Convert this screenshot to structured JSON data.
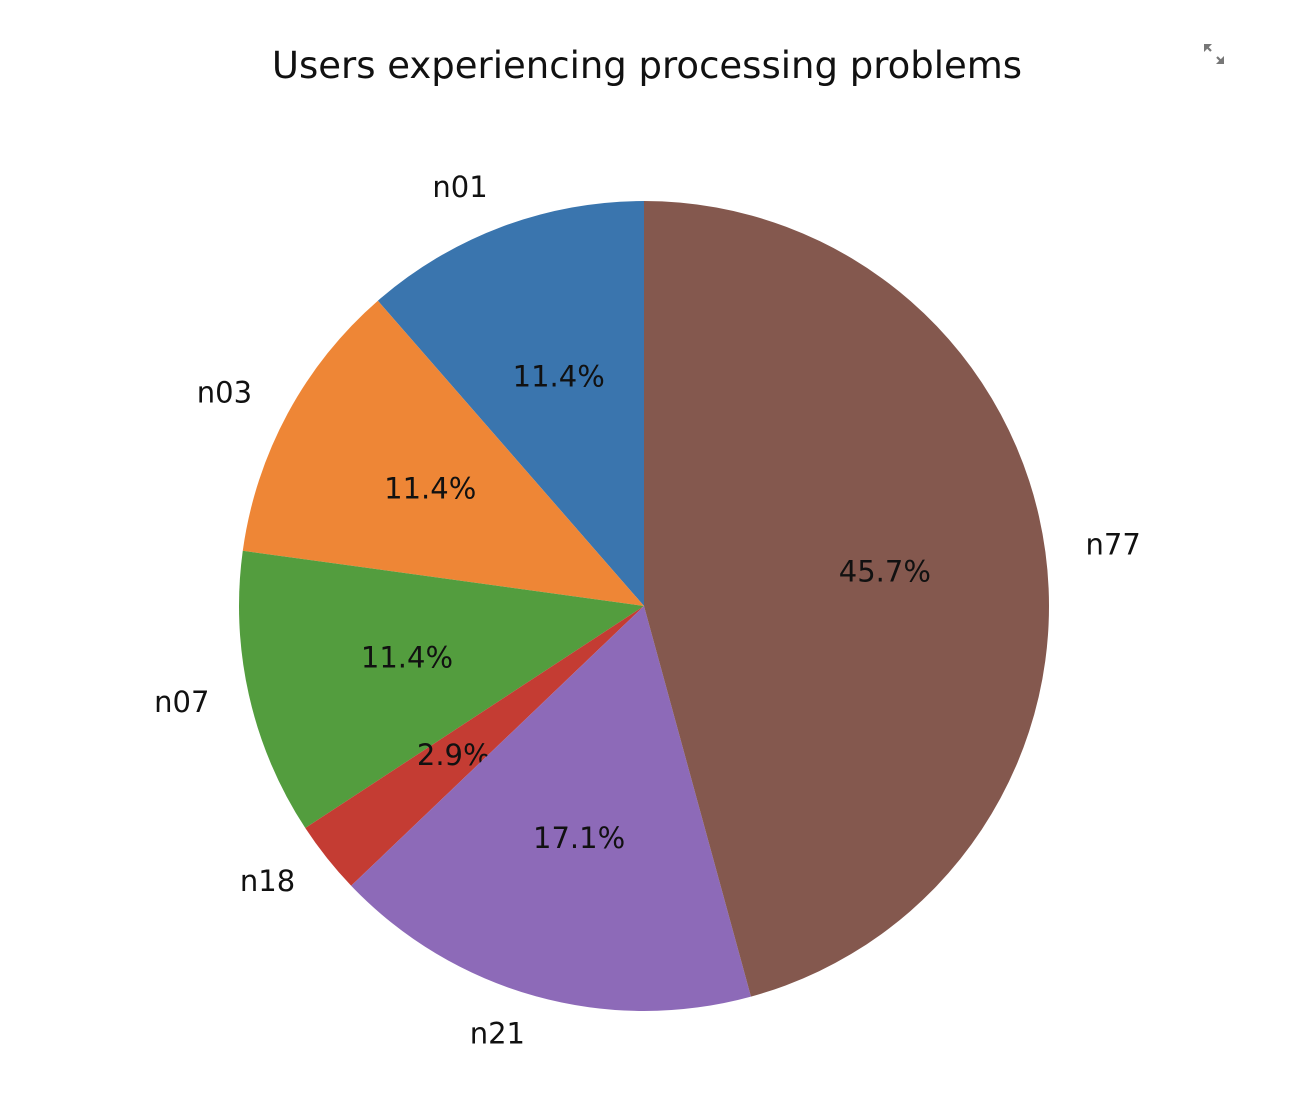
{
  "chart_data": {
    "type": "pie",
    "title": "Users experiencing processing problems",
    "categories": [
      "n01",
      "n03",
      "n07",
      "n18",
      "n21",
      "n77"
    ],
    "values": [
      11.4,
      11.4,
      11.4,
      2.9,
      17.1,
      45.7
    ],
    "value_labels": [
      "11.4%",
      "11.4%",
      "11.4%",
      "2.9%",
      "17.1%",
      "45.7%"
    ],
    "colors": [
      "#3a75ae",
      "#ee8636",
      "#539d3e",
      "#c43c33",
      "#8d6ab8",
      "#84584e"
    ],
    "start_angle_deg": 90,
    "direction": "counterclockwise",
    "legend": "none"
  },
  "toolbar": {
    "expand_icon": "expand-icon"
  }
}
